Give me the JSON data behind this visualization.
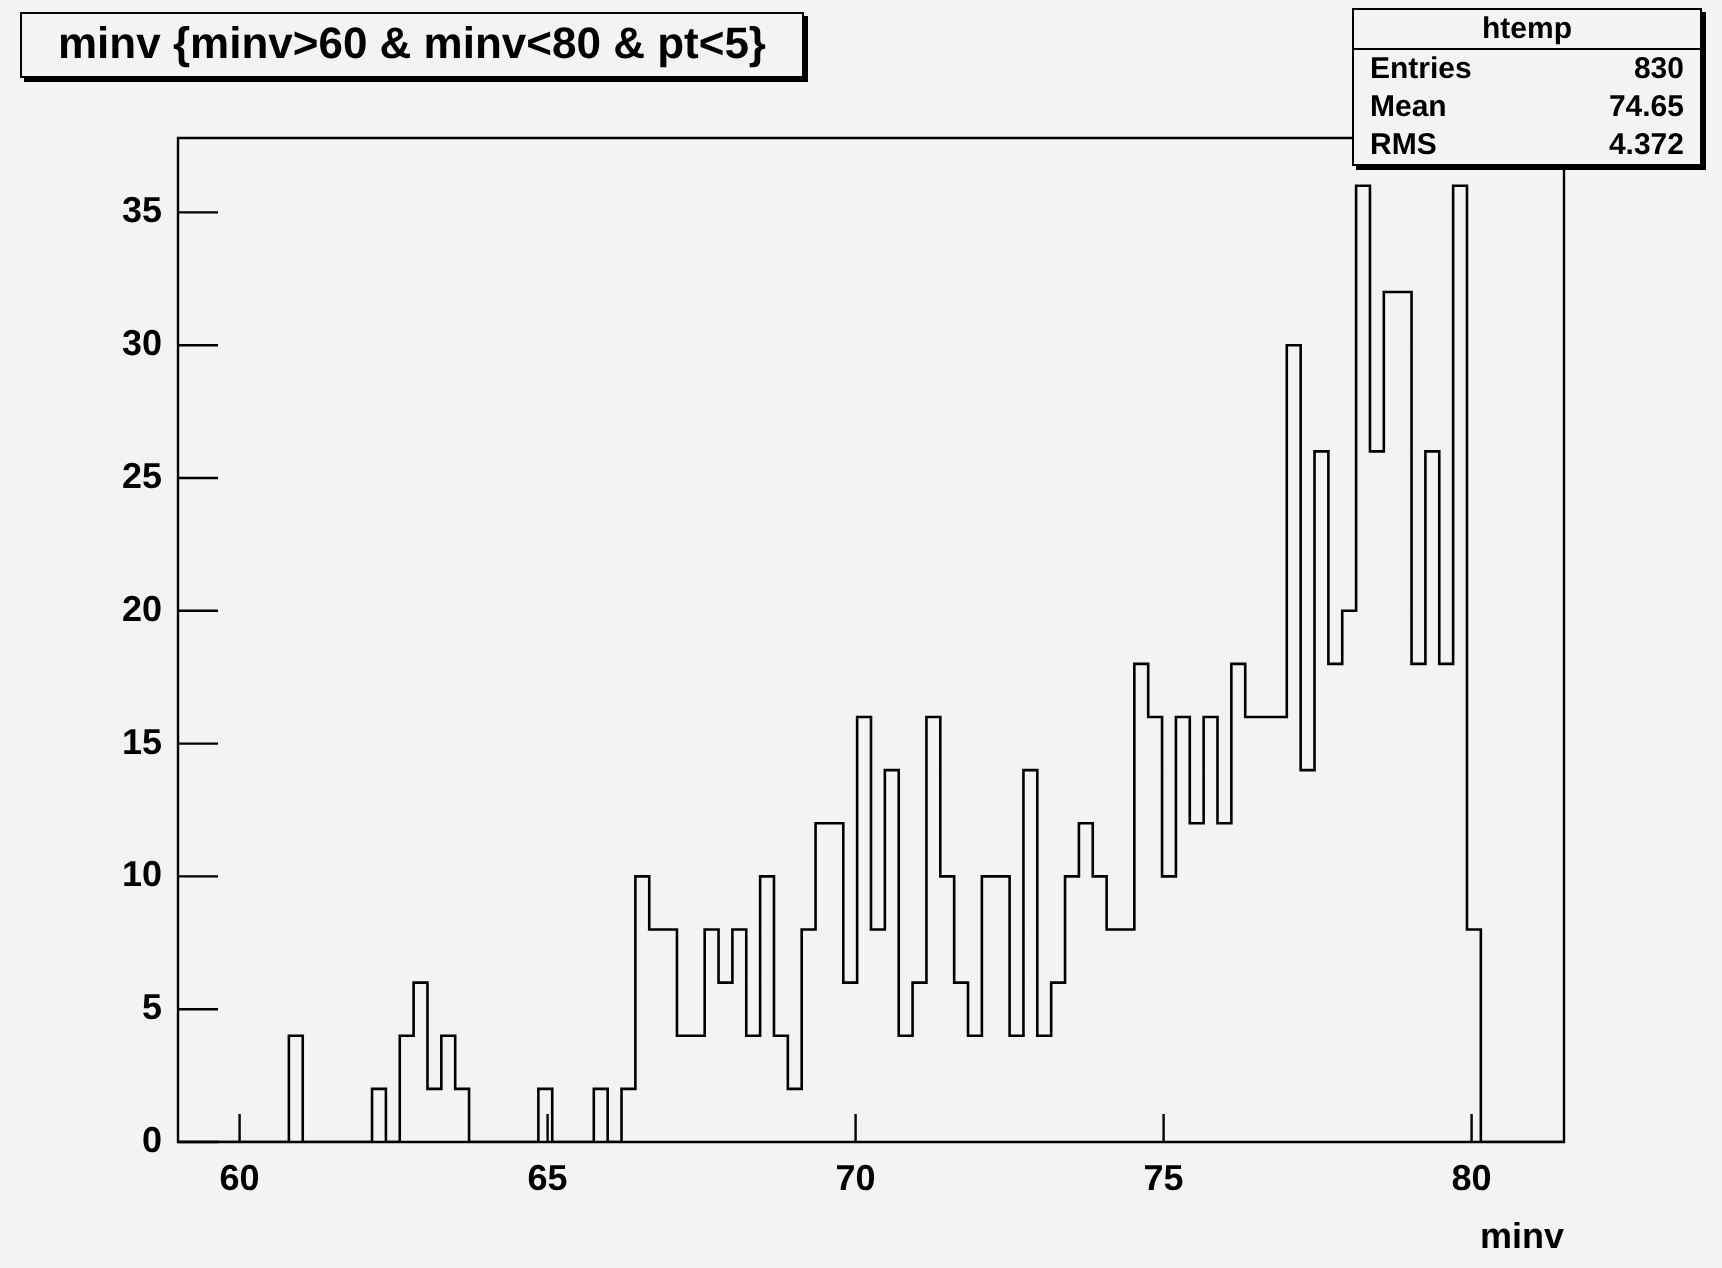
{
  "chart_data": {
    "type": "histogram",
    "title": "minv {minv>60 & minv<80 & pt<5}",
    "xlabel": "minv",
    "color": "#000000",
    "annotations": [
      "htemp",
      "Entries",
      "830",
      "Mean",
      "74.65",
      "RMS",
      "4.372"
    ],
    "bins": [
      59,
      59.225,
      59.45,
      59.675,
      59.9,
      60.125,
      60.35,
      60.575,
      60.8,
      61.025,
      61.25,
      61.475,
      61.7,
      61.925,
      62.15,
      62.375,
      62.6,
      62.825,
      63.05,
      63.275,
      63.5,
      63.725,
      63.95,
      64.175,
      64.4,
      64.625,
      64.85,
      65.075,
      65.3,
      65.525,
      65.75,
      65.975,
      66.2,
      66.425,
      66.65,
      66.875,
      67.1,
      67.325,
      67.55,
      67.775,
      68,
      68.225,
      68.45,
      68.675,
      68.9,
      69.125,
      69.35,
      69.575,
      69.8,
      70.025,
      70.25,
      70.475,
      70.7,
      70.925,
      71.15,
      71.375,
      71.6,
      71.825,
      72.05,
      72.275,
      72.5,
      72.725,
      72.95,
      73.175,
      73.4,
      73.625,
      73.85,
      74.075,
      74.3,
      74.525,
      74.75,
      74.975,
      75.2,
      75.425,
      75.65,
      75.875,
      76.1,
      76.325,
      76.55,
      76.775,
      77,
      77.225,
      77.45,
      77.675,
      77.9,
      78.125,
      78.35,
      78.575,
      78.8,
      79.025,
      79.25,
      79.475,
      79.7,
      79.925,
      80.15,
      80.375,
      80.6,
      80.825,
      81.05,
      81.275,
      81.5
    ],
    "values": [
      0,
      0,
      0,
      0,
      0,
      0,
      0,
      0,
      4,
      0,
      0,
      0,
      0,
      0,
      2,
      0,
      4,
      6,
      2,
      4,
      2,
      0,
      0,
      0,
      0,
      0,
      2,
      0,
      0,
      0,
      2,
      0,
      2,
      10,
      8,
      8,
      4,
      4,
      8,
      6,
      8,
      4,
      10,
      4,
      2,
      8,
      12,
      12,
      6,
      16,
      8,
      14,
      4,
      6,
      16,
      10,
      6,
      4,
      10,
      10,
      4,
      14,
      4,
      6,
      10,
      12,
      10,
      8,
      8,
      18,
      16,
      10,
      16,
      12,
      16,
      12,
      18,
      16,
      16,
      16,
      30,
      14,
      26,
      18,
      20,
      36,
      26,
      32,
      32,
      18,
      26,
      18,
      36,
      8,
      0,
      0,
      0,
      0,
      0,
      0
    ],
    "xlim": [
      59,
      81.5
    ],
    "xticks": [
      60,
      65,
      70,
      75,
      80
    ],
    "ylim": [
      0,
      37.8
    ],
    "yticks": [
      0,
      5,
      10,
      15,
      20,
      25,
      30,
      35
    ],
    "grid": false
  }
}
